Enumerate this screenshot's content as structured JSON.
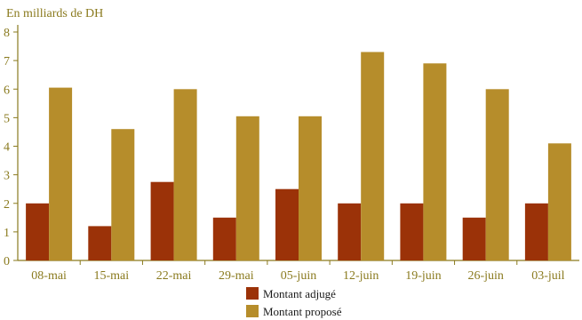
{
  "chart_data": {
    "type": "bar",
    "unit_label": "En milliards de DH",
    "categories": [
      "08-mai",
      "15-mai",
      "22-mai",
      "29-mai",
      "05-juin",
      "12-juin",
      "19-juin",
      "26-juin",
      "03-juil"
    ],
    "series": [
      {
        "name": "Montant adjugé",
        "color": "#9b3208",
        "values": [
          2.0,
          1.2,
          2.75,
          1.5,
          2.5,
          2.0,
          2.0,
          1.5,
          2.0
        ]
      },
      {
        "name": "Montant proposé",
        "color": "#b68d2b",
        "values": [
          6.05,
          4.6,
          6.0,
          5.05,
          5.05,
          7.3,
          6.9,
          6.0,
          4.1
        ]
      }
    ],
    "yticks": [
      0,
      1,
      2,
      3,
      4,
      5,
      6,
      7,
      8
    ],
    "ylim": [
      0,
      8
    ],
    "axis_color": "#8a7a1e"
  }
}
